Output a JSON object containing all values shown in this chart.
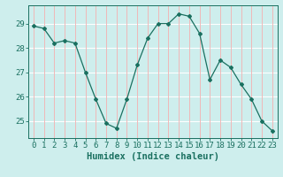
{
  "x": [
    0,
    1,
    2,
    3,
    4,
    5,
    6,
    7,
    8,
    9,
    10,
    11,
    12,
    13,
    14,
    15,
    16,
    17,
    18,
    19,
    20,
    21,
    22,
    23
  ],
  "y": [
    28.9,
    28.8,
    28.2,
    28.3,
    28.2,
    27.0,
    25.9,
    24.9,
    24.7,
    25.9,
    27.3,
    28.4,
    29.0,
    29.0,
    29.4,
    29.3,
    28.6,
    26.7,
    27.5,
    27.2,
    26.5,
    25.9,
    25.0,
    24.6
  ],
  "xlabel": "Humidex (Indice chaleur)",
  "ylim": [
    24.3,
    29.75
  ],
  "yticks": [
    25,
    26,
    27,
    28,
    29
  ],
  "xticks": [
    0,
    1,
    2,
    3,
    4,
    5,
    6,
    7,
    8,
    9,
    10,
    11,
    12,
    13,
    14,
    15,
    16,
    17,
    18,
    19,
    20,
    21,
    22,
    23
  ],
  "line_color": "#1a7060",
  "marker": "D",
  "marker_size": 2.0,
  "line_width": 0.9,
  "bg_color": "#ceeeed",
  "hgrid_color": "#ffffff",
  "vgrid_color": "#f0b8b8",
  "tick_color": "#1a7060",
  "label_color": "#1a7060",
  "font_size_ticks": 6.5,
  "font_size_xlabel": 7.5
}
